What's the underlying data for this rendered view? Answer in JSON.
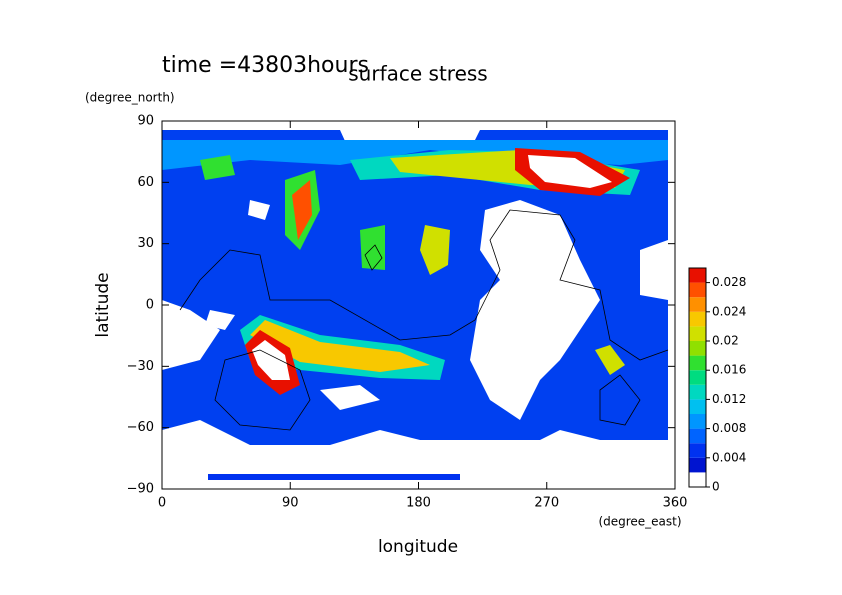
{
  "chart_data": {
    "type": "contour",
    "title": "surface stress",
    "subtitle": "time =43803hours",
    "xlabel": "longitude",
    "ylabel": "latitude",
    "xunits": "(degree_east)",
    "yunits": "(degree_north)",
    "xlim": [
      0,
      360
    ],
    "xticks": [
      0,
      90,
      180,
      270,
      360
    ],
    "ylim": [
      -90,
      90
    ],
    "yticks": [
      -90,
      -60,
      -30,
      0,
      30,
      60,
      90
    ],
    "clim": [
      0,
      0.03
    ],
    "cticks": [
      0,
      0.004,
      0.008,
      0.012,
      0.016,
      0.02,
      0.024,
      0.028
    ],
    "colors": [
      "#ffffff",
      "#0014d0",
      "#0032f0",
      "#0064ff",
      "#0096ff",
      "#00c0f0",
      "#00d8c0",
      "#00dc80",
      "#30e030",
      "#90e000",
      "#d0e000",
      "#f8c800",
      "#ff9000",
      "#ff5000",
      "#e81000"
    ]
  }
}
